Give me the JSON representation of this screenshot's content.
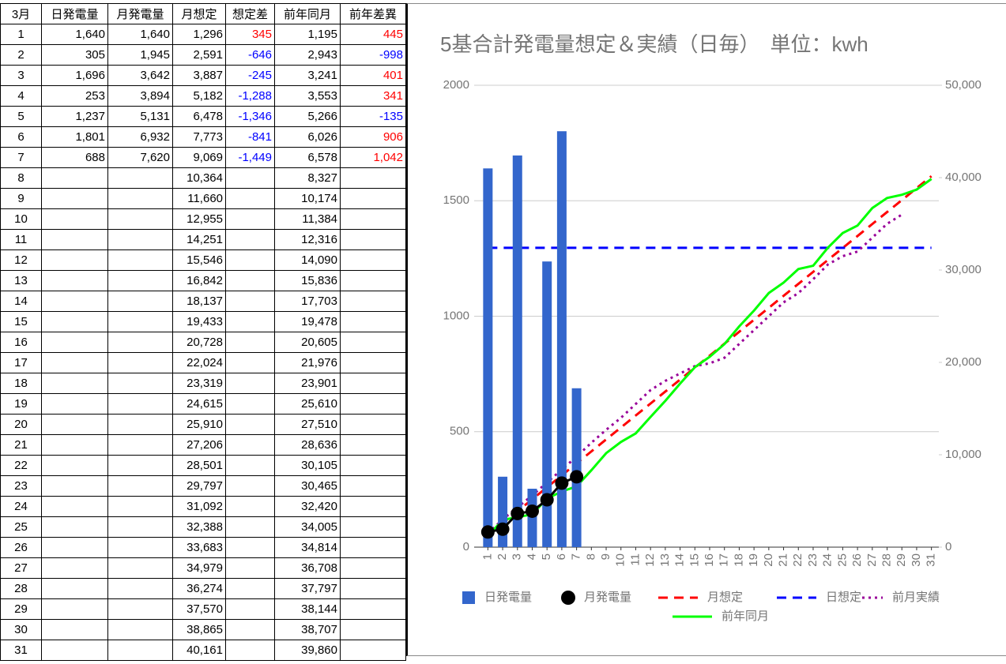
{
  "table": {
    "header": [
      "3月",
      "日発電量",
      "月発電量",
      "月想定",
      "想定差",
      "前年同月",
      "前年差異"
    ],
    "positive_color": "#ff0000",
    "negative_color": "#0000ff",
    "rows": [
      [
        "1",
        "1,640",
        "1,640",
        "1,296",
        "345",
        "1,195",
        "445"
      ],
      [
        "2",
        "305",
        "1,945",
        "2,591",
        "-646",
        "2,943",
        "-998"
      ],
      [
        "3",
        "1,696",
        "3,642",
        "3,887",
        "-245",
        "3,241",
        "401"
      ],
      [
        "4",
        "253",
        "3,894",
        "5,182",
        "-1,288",
        "3,553",
        "341"
      ],
      [
        "5",
        "1,237",
        "5,131",
        "6,478",
        "-1,346",
        "5,266",
        "-135"
      ],
      [
        "6",
        "1,801",
        "6,932",
        "7,773",
        "-841",
        "6,026",
        "906"
      ],
      [
        "7",
        "688",
        "7,620",
        "9,069",
        "-1,449",
        "6,578",
        "1,042"
      ],
      [
        "8",
        null,
        null,
        "10,364",
        null,
        "8,327",
        null
      ],
      [
        "9",
        null,
        null,
        "11,660",
        null,
        "10,174",
        null
      ],
      [
        "10",
        null,
        null,
        "12,955",
        null,
        "11,384",
        null
      ],
      [
        "11",
        null,
        null,
        "14,251",
        null,
        "12,316",
        null
      ],
      [
        "12",
        null,
        null,
        "15,546",
        null,
        "14,090",
        null
      ],
      [
        "13",
        null,
        null,
        "16,842",
        null,
        "15,836",
        null
      ],
      [
        "14",
        null,
        null,
        "18,137",
        null,
        "17,703",
        null
      ],
      [
        "15",
        null,
        null,
        "19,433",
        null,
        "19,478",
        null
      ],
      [
        "16",
        null,
        null,
        "20,728",
        null,
        "20,605",
        null
      ],
      [
        "17",
        null,
        null,
        "22,024",
        null,
        "21,976",
        null
      ],
      [
        "18",
        null,
        null,
        "23,319",
        null,
        "23,901",
        null
      ],
      [
        "19",
        null,
        null,
        "24,615",
        null,
        "25,610",
        null
      ],
      [
        "20",
        null,
        null,
        "25,910",
        null,
        "27,510",
        null
      ],
      [
        "21",
        null,
        null,
        "27,206",
        null,
        "28,636",
        null
      ],
      [
        "22",
        null,
        null,
        "28,501",
        null,
        "30,105",
        null
      ],
      [
        "23",
        null,
        null,
        "29,797",
        null,
        "30,465",
        null
      ],
      [
        "24",
        null,
        null,
        "31,092",
        null,
        "32,420",
        null
      ],
      [
        "25",
        null,
        null,
        "32,388",
        null,
        "34,005",
        null
      ],
      [
        "26",
        null,
        null,
        "33,683",
        null,
        "34,814",
        null
      ],
      [
        "27",
        null,
        null,
        "34,979",
        null,
        "36,708",
        null
      ],
      [
        "28",
        null,
        null,
        "36,274",
        null,
        "37,797",
        null
      ],
      [
        "29",
        null,
        null,
        "37,570",
        null,
        "38,144",
        null
      ],
      [
        "30",
        null,
        null,
        "38,865",
        null,
        "38,707",
        null
      ],
      [
        "31",
        null,
        null,
        "40,161",
        null,
        "39,860",
        null
      ]
    ]
  },
  "chart_data": {
    "type": "combo",
    "title": "5基合計発電量想定＆実績（日毎）　単位：kwh",
    "categories": [
      "1",
      "2",
      "3",
      "4",
      "5",
      "6",
      "7",
      "8",
      "9",
      "10",
      "11",
      "12",
      "13",
      "14",
      "15",
      "16",
      "17",
      "18",
      "19",
      "20",
      "21",
      "22",
      "23",
      "24",
      "25",
      "26",
      "27",
      "28",
      "29",
      "30",
      "31"
    ],
    "ylim": [
      0,
      2000
    ],
    "yticks": [
      0,
      500,
      1000,
      1500,
      2000
    ],
    "y2lim": [
      0,
      50000
    ],
    "y2ticks": [
      0,
      {
        "value": 10000,
        "label": "10,000"
      },
      {
        "value": 20000,
        "label": "20,000"
      },
      {
        "value": 30000,
        "label": "30,000"
      },
      {
        "value": 40000,
        "label": "40,000"
      },
      {
        "value": 50000,
        "label": "50,000"
      }
    ],
    "grid": true,
    "series": [
      {
        "name": "日発電量",
        "type": "bar",
        "color": "#3366cc",
        "values": [
          1640,
          305,
          1696,
          253,
          1237,
          1801,
          688,
          null,
          null,
          null,
          null,
          null,
          null,
          null,
          null,
          null,
          null,
          null,
          null,
          null,
          null,
          null,
          null,
          null,
          null,
          null,
          null,
          null,
          null,
          null,
          null
        ]
      },
      {
        "name": "月発電量",
        "type": "scatter",
        "color": "#000000",
        "axis": "y2",
        "values": [
          1640,
          1945,
          3642,
          3894,
          5131,
          6932,
          7620,
          null,
          null,
          null,
          null,
          null,
          null,
          null,
          null,
          null,
          null,
          null,
          null,
          null,
          null,
          null,
          null,
          null,
          null,
          null,
          null,
          null,
          null,
          null,
          null
        ]
      },
      {
        "name": "月想定",
        "type": "line",
        "style": "dashed",
        "color": "#ff0000",
        "axis": "y2",
        "values": [
          1296,
          2591,
          3887,
          5182,
          6478,
          7773,
          9069,
          10364,
          11660,
          12955,
          14251,
          15546,
          16842,
          18137,
          19433,
          20728,
          22024,
          23319,
          24615,
          25910,
          27206,
          28501,
          29797,
          31092,
          32388,
          33683,
          34979,
          36274,
          37570,
          38865,
          40161
        ]
      },
      {
        "name": "日想定",
        "type": "line",
        "style": "dashed",
        "color": "#0000ff",
        "values": [
          1296,
          1296,
          1296,
          1296,
          1296,
          1296,
          1296,
          1296,
          1296,
          1296,
          1296,
          1296,
          1296,
          1296,
          1296,
          1296,
          1296,
          1296,
          1296,
          1296,
          1296,
          1296,
          1296,
          1296,
          1296,
          1296,
          1296,
          1296,
          1296,
          1296,
          1296
        ]
      },
      {
        "name": "前月実績",
        "type": "line",
        "style": "dotted",
        "color": "#990099",
        "axis": "y2",
        "values": [
          1500,
          3000,
          4300,
          5600,
          7000,
          8400,
          9800,
          11300,
          12700,
          14000,
          15500,
          17000,
          18000,
          18800,
          19600,
          19900,
          20500,
          22000,
          23500,
          25000,
          26500,
          27500,
          29000,
          30600,
          31500,
          32000,
          33500,
          35000,
          36000,
          null,
          null
        ]
      },
      {
        "name": "前年同月",
        "type": "line",
        "style": "solid",
        "color": "#00ff00",
        "axis": "y2",
        "values": [
          1195,
          2943,
          3241,
          3553,
          5266,
          6026,
          6578,
          8327,
          10174,
          11384,
          12316,
          14090,
          15836,
          17703,
          19478,
          20605,
          21976,
          23901,
          25610,
          27510,
          28636,
          30105,
          30465,
          32420,
          34005,
          34814,
          36708,
          37797,
          38144,
          38707,
          39860
        ]
      }
    ]
  }
}
